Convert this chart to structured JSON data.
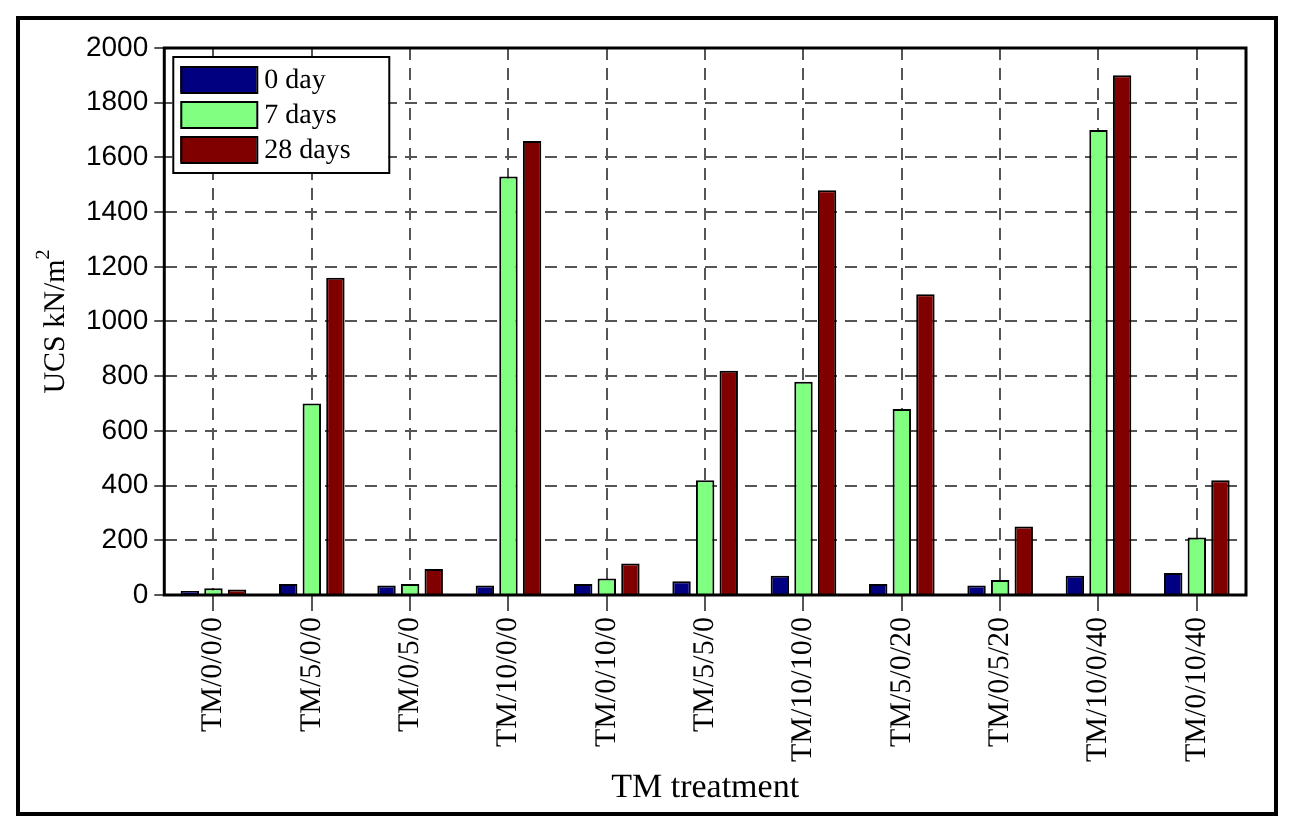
{
  "chart_data": {
    "type": "bar",
    "xlabel": "TM treatment",
    "ylabel": "UCS kN/m$^{2}$",
    "categories": [
      "TM/0/0/0",
      "TM/5/0/0",
      "TM/0/5/0",
      "TM/10/0/0",
      "TM/0/10/0",
      "TM/5/5/0",
      "TM/10/10/0",
      "TM/5/0/20",
      "TM/0/5/20",
      "TM/10/0/40",
      "TM/0/10/40"
    ],
    "series": [
      {
        "name": "0 day",
        "color": "#000080",
        "values": [
          15,
          40,
          35,
          35,
          40,
          50,
          70,
          40,
          35,
          70,
          80
        ]
      },
      {
        "name": "7 days",
        "color": "#80ff80",
        "values": [
          25,
          700,
          40,
          1530,
          60,
          420,
          780,
          680,
          55,
          1700,
          210
        ]
      },
      {
        "name": "28 days",
        "color": "#800000",
        "values": [
          20,
          1160,
          95,
          1660,
          115,
          820,
          1480,
          1100,
          250,
          1900,
          420
        ]
      }
    ],
    "ylim": [
      0,
      2000
    ],
    "yticks": [
      0,
      200,
      400,
      600,
      800,
      1000,
      1200,
      1400,
      1600,
      1800,
      2000
    ],
    "grid": true,
    "legend": "top left"
  }
}
